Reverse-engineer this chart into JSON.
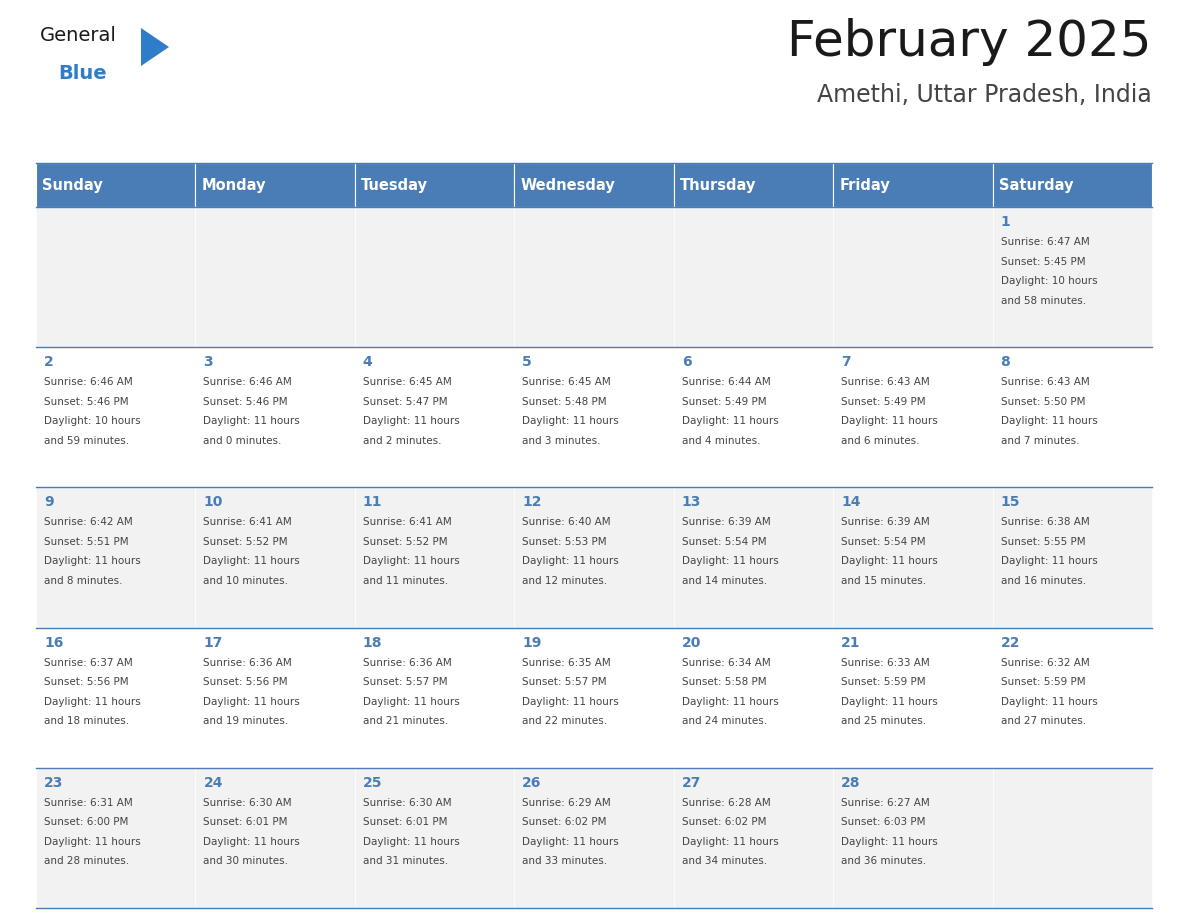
{
  "title": "February 2025",
  "subtitle": "Amethi, Uttar Pradesh, India",
  "days_of_week": [
    "Sunday",
    "Monday",
    "Tuesday",
    "Wednesday",
    "Thursday",
    "Friday",
    "Saturday"
  ],
  "header_bg": "#4A7DB5",
  "header_text": "#FFFFFF",
  "row_bg_light": "#F2F2F2",
  "row_bg_white": "#FFFFFF",
  "day_num_color": "#4A7DB5",
  "info_text_color": "#444444",
  "border_color": "#4A7DB5",
  "title_color": "#1a1a1a",
  "subtitle_color": "#444444",
  "logo_general_color": "#1a1a1a",
  "logo_blue_color": "#2F7DC8",
  "calendar_data": [
    [
      null,
      null,
      null,
      null,
      null,
      null,
      1
    ],
    [
      2,
      3,
      4,
      5,
      6,
      7,
      8
    ],
    [
      9,
      10,
      11,
      12,
      13,
      14,
      15
    ],
    [
      16,
      17,
      18,
      19,
      20,
      21,
      22
    ],
    [
      23,
      24,
      25,
      26,
      27,
      28,
      null
    ]
  ],
  "sunrise_data": {
    "1": "6:47 AM",
    "2": "6:46 AM",
    "3": "6:46 AM",
    "4": "6:45 AM",
    "5": "6:45 AM",
    "6": "6:44 AM",
    "7": "6:43 AM",
    "8": "6:43 AM",
    "9": "6:42 AM",
    "10": "6:41 AM",
    "11": "6:41 AM",
    "12": "6:40 AM",
    "13": "6:39 AM",
    "14": "6:39 AM",
    "15": "6:38 AM",
    "16": "6:37 AM",
    "17": "6:36 AM",
    "18": "6:36 AM",
    "19": "6:35 AM",
    "20": "6:34 AM",
    "21": "6:33 AM",
    "22": "6:32 AM",
    "23": "6:31 AM",
    "24": "6:30 AM",
    "25": "6:30 AM",
    "26": "6:29 AM",
    "27": "6:28 AM",
    "28": "6:27 AM"
  },
  "sunset_data": {
    "1": "5:45 PM",
    "2": "5:46 PM",
    "3": "5:46 PM",
    "4": "5:47 PM",
    "5": "5:48 PM",
    "6": "5:49 PM",
    "7": "5:49 PM",
    "8": "5:50 PM",
    "9": "5:51 PM",
    "10": "5:52 PM",
    "11": "5:52 PM",
    "12": "5:53 PM",
    "13": "5:54 PM",
    "14": "5:54 PM",
    "15": "5:55 PM",
    "16": "5:56 PM",
    "17": "5:56 PM",
    "18": "5:57 PM",
    "19": "5:57 PM",
    "20": "5:58 PM",
    "21": "5:59 PM",
    "22": "5:59 PM",
    "23": "6:00 PM",
    "24": "6:01 PM",
    "25": "6:01 PM",
    "26": "6:02 PM",
    "27": "6:02 PM",
    "28": "6:03 PM"
  },
  "daylight_data": {
    "1": [
      "10 hours",
      "and 58 minutes."
    ],
    "2": [
      "10 hours",
      "and 59 minutes."
    ],
    "3": [
      "11 hours",
      "and 0 minutes."
    ],
    "4": [
      "11 hours",
      "and 2 minutes."
    ],
    "5": [
      "11 hours",
      "and 3 minutes."
    ],
    "6": [
      "11 hours",
      "and 4 minutes."
    ],
    "7": [
      "11 hours",
      "and 6 minutes."
    ],
    "8": [
      "11 hours",
      "and 7 minutes."
    ],
    "9": [
      "11 hours",
      "and 8 minutes."
    ],
    "10": [
      "11 hours",
      "and 10 minutes."
    ],
    "11": [
      "11 hours",
      "and 11 minutes."
    ],
    "12": [
      "11 hours",
      "and 12 minutes."
    ],
    "13": [
      "11 hours",
      "and 14 minutes."
    ],
    "14": [
      "11 hours",
      "and 15 minutes."
    ],
    "15": [
      "11 hours",
      "and 16 minutes."
    ],
    "16": [
      "11 hours",
      "and 18 minutes."
    ],
    "17": [
      "11 hours",
      "and 19 minutes."
    ],
    "18": [
      "11 hours",
      "and 21 minutes."
    ],
    "19": [
      "11 hours",
      "and 22 minutes."
    ],
    "20": [
      "11 hours",
      "and 24 minutes."
    ],
    "21": [
      "11 hours",
      "and 25 minutes."
    ],
    "22": [
      "11 hours",
      "and 27 minutes."
    ],
    "23": [
      "11 hours",
      "and 28 minutes."
    ],
    "24": [
      "11 hours",
      "and 30 minutes."
    ],
    "25": [
      "11 hours",
      "and 31 minutes."
    ],
    "26": [
      "11 hours",
      "and 33 minutes."
    ],
    "27": [
      "11 hours",
      "and 34 minutes."
    ],
    "28": [
      "11 hours",
      "and 36 minutes."
    ]
  }
}
